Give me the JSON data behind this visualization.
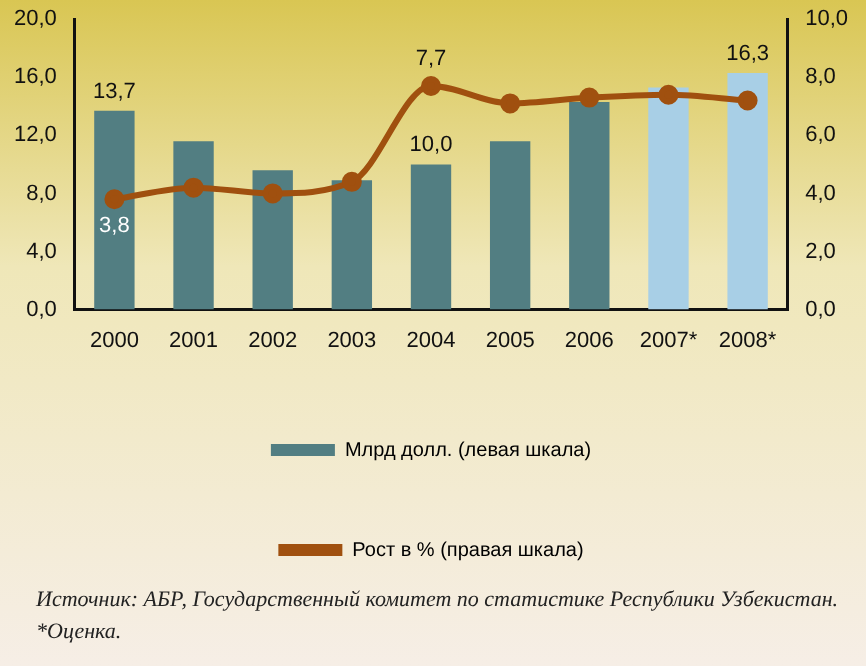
{
  "chart_data": {
    "type": "bar",
    "categories": [
      "2000",
      "2001",
      "2002",
      "2003",
      "2004",
      "2005",
      "2006",
      "2007*",
      "2008*"
    ],
    "series": [
      {
        "name": "Млрд долл. (левая шкала)",
        "color": "#527e82",
        "colors": [
          "#527e82",
          "#527e82",
          "#527e82",
          "#527e82",
          "#527e82",
          "#527e82",
          "#527e82",
          "#a8cfe6",
          "#a8cfe6"
        ],
        "values": [
          13.7,
          11.6,
          9.6,
          8.9,
          10.0,
          11.6,
          14.3,
          15.3,
          16.3
        ],
        "value_labels": [
          "13,7",
          null,
          null,
          null,
          "10,0",
          null,
          null,
          null,
          "16,3"
        ]
      },
      {
        "name": "Рост в % (правая шкала)",
        "type": "line",
        "axis": "y2",
        "color": "#a0500f",
        "values": [
          3.8,
          4.2,
          4.0,
          4.4,
          7.7,
          7.1,
          7.3,
          7.4,
          7.2
        ],
        "value_labels": [
          "3,8",
          null,
          null,
          null,
          "7,7",
          null,
          null,
          null,
          null
        ]
      }
    ],
    "ylim": [
      0,
      20
    ],
    "yticks": [
      {
        "value": 0,
        "label": "0,0"
      },
      {
        "value": 4,
        "label": "4,0"
      },
      {
        "value": 8,
        "label": "8,0"
      },
      {
        "value": 12,
        "label": "12,0"
      },
      {
        "value": 16,
        "label": "16,0"
      },
      {
        "value": 20,
        "label": "20,0"
      }
    ],
    "y2lim": [
      0,
      10
    ],
    "y2ticks": [
      {
        "value": 0,
        "label": "0,0"
      },
      {
        "value": 2,
        "label": "2,0"
      },
      {
        "value": 4,
        "label": "4,0"
      },
      {
        "value": 6,
        "label": "6,0"
      },
      {
        "value": 8,
        "label": "8,0"
      },
      {
        "value": 10,
        "label": "10,0"
      }
    ],
    "marker": "circle",
    "legend": "bottom",
    "grid": false,
    "annotations": [
      "Источник: АБР, Государственный комитет по статистике Республики Узбекистан.",
      "*Оценка."
    ]
  }
}
